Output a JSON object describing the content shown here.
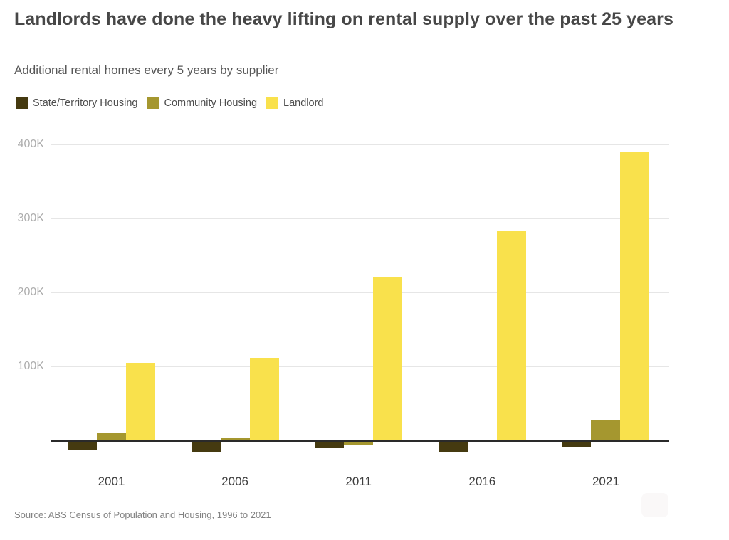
{
  "header": {
    "title": "Landlords have done the heavy lifting on rental supply over the past 25 years",
    "subtitle": "Additional rental homes every 5 years by supplier"
  },
  "legend": [
    {
      "label": "State/Territory Housing",
      "color": "#453a10"
    },
    {
      "label": "Community Housing",
      "color": "#a5972f"
    },
    {
      "label": "Landlord",
      "color": "#f9e14c"
    }
  ],
  "footer": {
    "source": "Source: ABS Census of Population and Housing, 1996 to 2021"
  },
  "chart_data": {
    "type": "bar",
    "title": "Landlords have done the heavy lifting on rental supply over the past 25 years",
    "subtitle": "Additional rental homes every 5 years by supplier",
    "categories": [
      "2001",
      "2006",
      "2011",
      "2016",
      "2021"
    ],
    "series": [
      {
        "name": "State/Territory Housing",
        "color": "#453a10",
        "values": [
          -11000,
          -13000,
          -9000,
          -13000,
          -7000
        ]
      },
      {
        "name": "Community Housing",
        "color": "#a5972f",
        "values": [
          12000,
          5000,
          -4000,
          0,
          28000
        ]
      },
      {
        "name": "Landlord",
        "color": "#f9e14c",
        "values": [
          106000,
          112000,
          221000,
          283000,
          391000
        ]
      }
    ],
    "xlabel": "",
    "ylabel": "",
    "yticks": [
      {
        "label": "100K",
        "value": 100000
      },
      {
        "label": "200K",
        "value": 200000
      },
      {
        "label": "300K",
        "value": 300000
      },
      {
        "label": "400K",
        "value": 400000
      }
    ],
    "ylim": [
      -20000,
      420000
    ],
    "grid": true,
    "legend_position": "top",
    "baseline_value": 0
  }
}
